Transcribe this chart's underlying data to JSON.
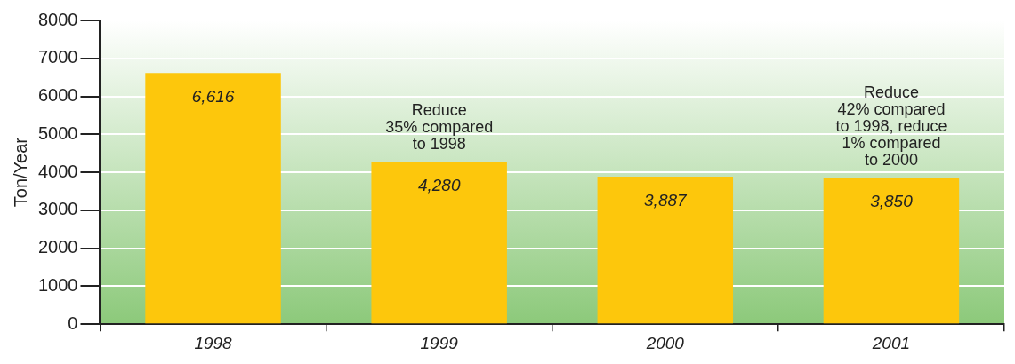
{
  "chart_data": {
    "type": "bar",
    "ylabel": "Ton/Year",
    "categories": [
      "1998",
      "1999",
      "2000",
      "2001"
    ],
    "values": [
      6616,
      4280,
      3887,
      3850
    ],
    "color": "#fdc70c",
    "value_labels": [
      "6,616",
      "4,280",
      "3,887",
      "3,850"
    ],
    "ylim": [
      0,
      8000
    ],
    "yticks": [
      0,
      1000,
      2000,
      3000,
      4000,
      5000,
      6000,
      7000,
      8000
    ],
    "grid": "y",
    "annotations": [
      {
        "text": "Reduce\n35% compared\nto 1998",
        "x": "1999",
        "y": 4280
      },
      {
        "text": "Reduce\n42% compared\nto 1998, reduce\n1% compared\nto 2000",
        "x": "2001",
        "y": 3850
      }
    ]
  }
}
